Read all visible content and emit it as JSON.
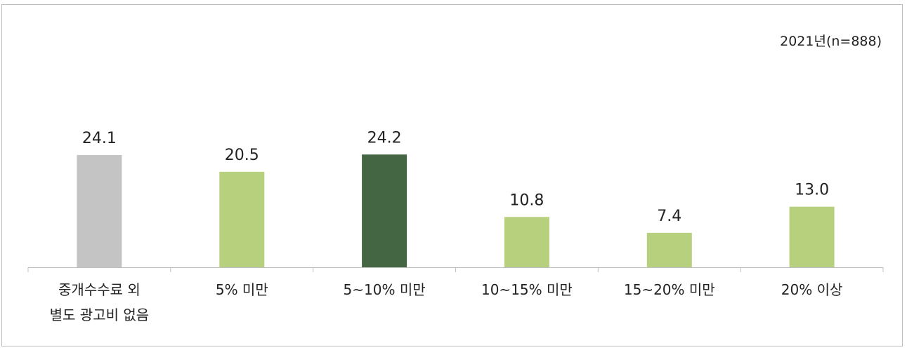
{
  "note": "2021년(n=888)",
  "colors": {
    "gray": "#c4c4c4",
    "light_green": "#b7d07e",
    "dark_green": "#456642",
    "axis": "#bfbfbf"
  },
  "chart_data": {
    "type": "bar",
    "title": "",
    "xlabel": "",
    "ylabel": "",
    "ylim": [
      0,
      30
    ],
    "grid": false,
    "categories": [
      [
        "중개수수료 외",
        "별도 광고비 없음"
      ],
      [
        "5% 미만"
      ],
      [
        "5~10% 미만"
      ],
      [
        "10~15% 미만"
      ],
      [
        "15~20% 미만"
      ],
      [
        "20% 이상"
      ]
    ],
    "values": [
      24.1,
      20.5,
      24.2,
      10.8,
      7.4,
      13.0
    ],
    "value_labels": [
      "24.1",
      "20.5",
      "24.2",
      "10.8",
      "7.4",
      "13.0"
    ],
    "bar_colors": [
      "#c4c4c4",
      "#b7d07e",
      "#456642",
      "#b7d07e",
      "#b7d07e",
      "#b7d07e"
    ]
  }
}
